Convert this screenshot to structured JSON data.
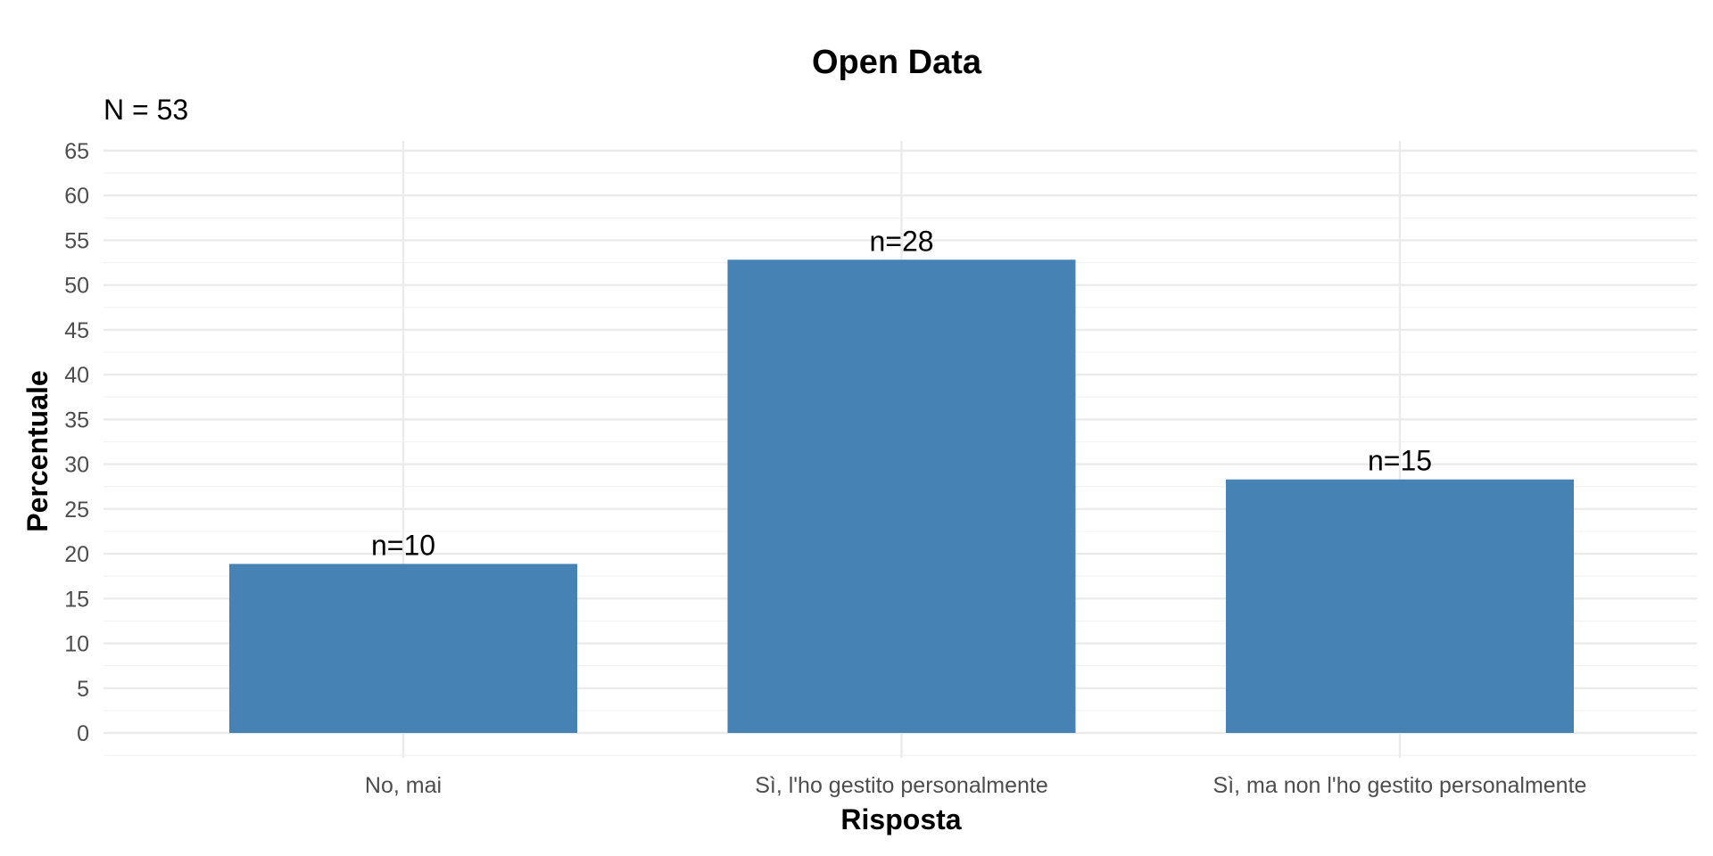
{
  "chart_data": {
    "type": "bar",
    "title": "Open Data",
    "subtitle": "N = 53",
    "xlabel": "Risposta",
    "ylabel": "Percentuale",
    "categories": [
      "No, mai",
      "Sì, l'ho gestito personalmente",
      "Sì, ma non l'ho gestito personalmente"
    ],
    "values": [
      18.87,
      52.83,
      28.3
    ],
    "data_labels": [
      "n=10",
      "n=28",
      "n=15"
    ],
    "ylim": [
      0,
      65
    ],
    "yticks": [
      0,
      5,
      10,
      15,
      20,
      25,
      30,
      35,
      40,
      45,
      50,
      55,
      60,
      65
    ],
    "grid": true,
    "bar_color": "#4682B4"
  }
}
